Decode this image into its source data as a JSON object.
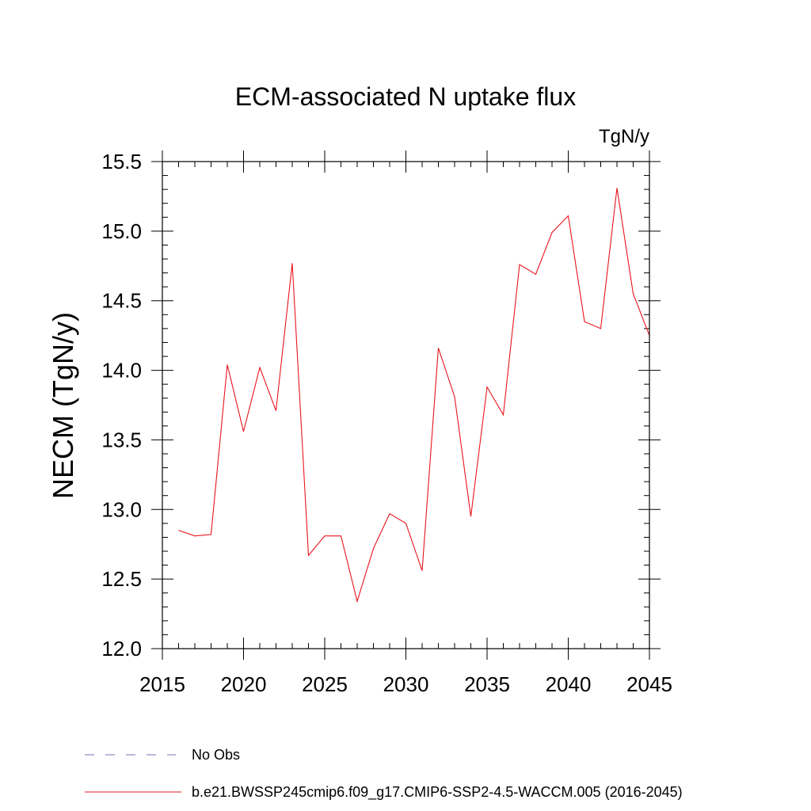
{
  "chart_data": {
    "type": "line",
    "title": "ECM-associated N uptake flux",
    "units": "TgN/y",
    "ylabel": "NECM  (TgN/y)",
    "xlabel": "",
    "xlim": [
      2015,
      2045
    ],
    "ylim": [
      12.0,
      15.5
    ],
    "xticks": [
      2015,
      2020,
      2025,
      2030,
      2035,
      2040,
      2045
    ],
    "xtick_labels": [
      "2015",
      "2020",
      "2025",
      "2030",
      "2035",
      "2040",
      "2045"
    ],
    "yticks": [
      12.0,
      12.5,
      13.0,
      13.5,
      14.0,
      14.5,
      15.0,
      15.5
    ],
    "ytick_labels": [
      "12.0",
      "12.5",
      "13.0",
      "13.5",
      "14.0",
      "14.5",
      "15.0",
      "15.5"
    ],
    "series": [
      {
        "name": "b.e21.BWSSP245cmip6.f09_g17.CMIP6-SSP2-4.5-WACCM.005 (2016-2045)",
        "color": "#e8141c",
        "style": "solid",
        "x": [
          2016,
          2017,
          2018,
          2019,
          2020,
          2021,
          2022,
          2023,
          2024,
          2025,
          2026,
          2027,
          2028,
          2029,
          2030,
          2031,
          2032,
          2033,
          2034,
          2035,
          2036,
          2037,
          2038,
          2039,
          2040,
          2041,
          2042,
          2043,
          2044,
          2045
        ],
        "values": [
          12.85,
          12.81,
          12.82,
          14.04,
          13.56,
          14.02,
          13.71,
          14.77,
          12.67,
          12.81,
          12.81,
          12.34,
          12.72,
          12.97,
          12.9,
          12.56,
          14.16,
          13.81,
          12.95,
          13.88,
          13.68,
          14.76,
          14.69,
          14.99,
          15.11,
          14.35,
          14.3,
          15.31,
          14.55,
          14.25
        ]
      }
    ],
    "legend": [
      {
        "label": "No Obs",
        "color": "#7b6fb8",
        "style": "dashed"
      },
      {
        "label": "b.e21.BWSSP245cmip6.f09_g17.CMIP6-SSP2-4.5-WACCM.005 (2016-2045)",
        "color": "#e8141c",
        "style": "solid"
      }
    ],
    "legend_position": "bottom-left"
  }
}
